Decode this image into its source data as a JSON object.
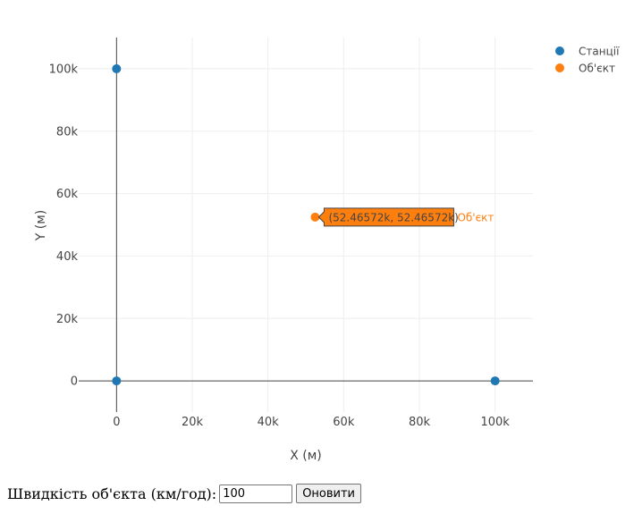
{
  "chart_data": {
    "type": "scatter",
    "xlabel": "X (м)",
    "ylabel": "Y (м)",
    "xlim": [
      -10000,
      110000
    ],
    "ylim": [
      -10000,
      110000
    ],
    "x_ticks": [
      0,
      20000,
      40000,
      60000,
      80000,
      100000
    ],
    "x_tick_labels": [
      "0",
      "20k",
      "40k",
      "60k",
      "80k",
      "100k"
    ],
    "y_ticks": [
      0,
      20000,
      40000,
      60000,
      80000,
      100000
    ],
    "y_tick_labels": [
      "0",
      "20k",
      "40k",
      "60k",
      "80k",
      "100k"
    ],
    "grid": true,
    "legend_position": "top-right",
    "series": [
      {
        "name": "Станції",
        "color": "#1f77b4",
        "x": [
          0,
          0,
          100000
        ],
        "y": [
          100000,
          0,
          0
        ]
      },
      {
        "name": "Об'єкт",
        "color": "#ff7f0e",
        "x": [
          52465.72
        ],
        "y": [
          52465.72
        ]
      }
    ],
    "hover": {
      "text": "(52.46572k, 52.46572k)",
      "series_label": "Об'єкт",
      "x": 52465.72,
      "y": 52465.72,
      "color": "#ff7f0e"
    }
  },
  "controls": {
    "speed_label": "Швидкість об'єкта (км/год):",
    "speed_value": "100",
    "update_button": "Оновити"
  }
}
